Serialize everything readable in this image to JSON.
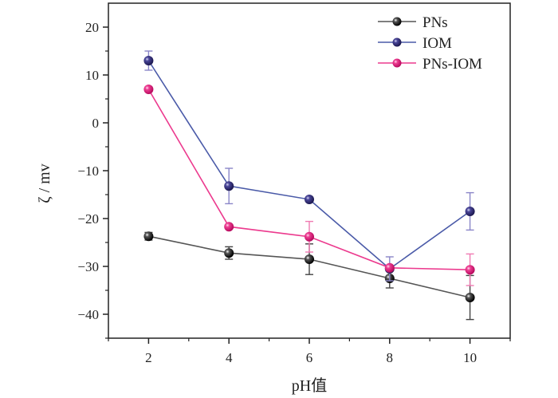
{
  "chart_data": {
    "type": "line",
    "title": "",
    "xlabel": "pH值",
    "ylabel": "ζ / mv",
    "xlim": [
      1,
      11
    ],
    "ylim": [
      -45,
      25
    ],
    "xticks": [
      2,
      4,
      6,
      8,
      10
    ],
    "xtick_labels": [
      "2",
      "4",
      "6",
      "8",
      "10"
    ],
    "yticks": [
      20,
      10,
      0,
      -10,
      -20,
      -30,
      -40
    ],
    "ytick_labels": [
      "20",
      "10",
      "0",
      "−10",
      "−20",
      "−30",
      "−40"
    ],
    "grid": false,
    "legend_position": "top-right",
    "x": [
      2,
      4,
      6,
      8,
      10
    ],
    "series": [
      {
        "name": "PNs",
        "color": "#000000",
        "line_color": "#555555",
        "values": [
          -23.7,
          -27.2,
          -28.5,
          -32.5,
          -36.5
        ],
        "errors": [
          0.8,
          1.3,
          3.2,
          2.0,
          4.6
        ]
      },
      {
        "name": "IOM",
        "color": "#2e2a7a",
        "line_color": "#4a5aa8",
        "values": [
          13.0,
          -13.2,
          -16.0,
          -30.5,
          -18.5
        ],
        "errors": [
          2.0,
          3.7,
          0.0,
          2.5,
          3.9
        ]
      },
      {
        "name": "PNs-IOM",
        "color": "#e3147a",
        "line_color": "#ec3a8e",
        "values": [
          7.0,
          -21.7,
          -23.8,
          -30.3,
          -30.7
        ],
        "errors": [
          0.0,
          0.0,
          3.2,
          0.0,
          3.3
        ]
      }
    ]
  }
}
